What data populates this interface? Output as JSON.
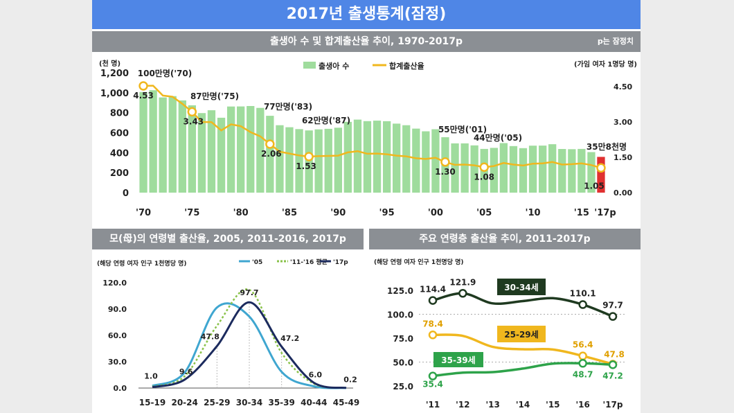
{
  "title": "2017년 출생통계(잠정)",
  "colors": {
    "bar": "#9fdc9d",
    "rate": "#f0b71e",
    "green_dark": "#1f3a20",
    "c05": "#3fa6d0",
    "c11_16": "#8ac24a",
    "c17": "#1c2b5e",
    "line_yellow": "#f0b71e",
    "line_green": "#2ea34a",
    "mark_red": "#e03030"
  },
  "top": {
    "subtitle": "출생아 수 및 합계출산율 추이, 1970-2017p",
    "note": "p는 잠정치",
    "unit_left": "(천 명)",
    "unit_right": "(가임 여자 1명당 명)",
    "legend_bar": "출생아 수",
    "legend_line": "합계출산율",
    "left_ticks": [
      "1,200",
      "1,000",
      "800",
      "600",
      "400",
      "200",
      "0"
    ],
    "right_ticks": [
      "4.50",
      "3.00",
      "1.50",
      "0.00"
    ],
    "x_labels": [
      "'70",
      "'75",
      "'80",
      "'85",
      "'90",
      "'95",
      "'00",
      "'05",
      "'10",
      "'15",
      "'17p"
    ],
    "callouts": [
      "100만명('70)",
      "87만명('75)",
      "77만명('83)",
      "62만명('87)",
      "55만명('01)",
      "44만명('05)",
      "35만8천명"
    ],
    "rate_labels": [
      "4.53",
      "3.43",
      "2.06",
      "1.53",
      "1.30",
      "1.08",
      "1.05"
    ]
  },
  "bl": {
    "subtitle": "모(母)의 연령별 출산율, 2005, 2011-2016, 2017p",
    "unit": "(해당 연령 여자 인구 1천명당 명)",
    "legend": [
      "'05",
      "'11-'16 평균",
      "'17p"
    ],
    "y_ticks": [
      "120.0",
      "90.0",
      "60.0",
      "30.0",
      "0.0"
    ],
    "x_labels": [
      "15-19",
      "20-24",
      "25-29",
      "30-34",
      "35-39",
      "40-44",
      "45-49"
    ],
    "point_labels": [
      "1.0",
      "9.6",
      "47.8",
      "97.7",
      "47.2",
      "6.0",
      "0.2"
    ]
  },
  "br": {
    "subtitle": "주요 연령층 출산율 추이, 2011-2017p",
    "unit": "(해당 연령 여자 인구 1천명당 명)",
    "y_ticks": [
      "125.0",
      "100.0",
      "75.0",
      "50.0",
      "25.0"
    ],
    "x_labels": [
      "'11",
      "'12",
      "'13",
      "'14",
      "'15",
      "'16",
      "'17p"
    ],
    "series_labels": [
      "30-34세",
      "25-29세",
      "35-39세"
    ],
    "value_labels": [
      "114.4",
      "121.9",
      "110.1",
      "97.7",
      "78.4",
      "56.4",
      "47.8",
      "35.4",
      "48.7",
      "47.2"
    ]
  },
  "chart_data": [
    {
      "type": "bar",
      "title": "출생아 수 및 합계출산율 추이, 1970-2017p",
      "ylabel": "(천 명)",
      "y2label": "(가임 여자 1명당 명)",
      "ylim": [
        0,
        1200
      ],
      "y2lim": [
        0,
        5.0
      ],
      "x": [
        1970,
        1971,
        1972,
        1973,
        1974,
        1975,
        1976,
        1977,
        1978,
        1979,
        1980,
        1981,
        1982,
        1983,
        1984,
        1985,
        1986,
        1987,
        1988,
        1989,
        1990,
        1991,
        1992,
        1993,
        1994,
        1995,
        1996,
        1997,
        1998,
        1999,
        2000,
        2001,
        2002,
        2003,
        2004,
        2005,
        2006,
        2007,
        2008,
        2009,
        2010,
        2011,
        2012,
        2013,
        2014,
        2015,
        2016,
        2017
      ],
      "series": [
        {
          "name": "출생아 수",
          "type": "bar",
          "values": [
            1007,
            1025,
            953,
            966,
            923,
            874,
            796,
            825,
            750,
            862,
            863,
            867,
            848,
            769,
            675,
            655,
            636,
            623,
            633,
            639,
            650,
            709,
            731,
            716,
            721,
            715,
            691,
            675,
            641,
            614,
            635,
            555,
            493,
            493,
            473,
            438,
            448,
            496,
            466,
            445,
            470,
            471,
            485,
            437,
            435,
            438,
            406,
            358
          ]
        },
        {
          "name": "합계출산율",
          "type": "line",
          "values": [
            4.53,
            4.54,
            4.12,
            4.07,
            3.77,
            3.43,
            3.0,
            2.99,
            2.64,
            2.9,
            2.82,
            2.57,
            2.39,
            2.06,
            1.74,
            1.66,
            1.58,
            1.53,
            1.55,
            1.56,
            1.57,
            1.71,
            1.76,
            1.65,
            1.66,
            1.63,
            1.57,
            1.54,
            1.46,
            1.43,
            1.48,
            1.3,
            1.18,
            1.19,
            1.16,
            1.08,
            1.13,
            1.26,
            1.19,
            1.15,
            1.23,
            1.24,
            1.3,
            1.19,
            1.21,
            1.24,
            1.17,
            1.05
          ]
        }
      ]
    },
    {
      "type": "line",
      "title": "모(母)의 연령별 출산율, 2005, 2011-2016, 2017p",
      "ylabel": "(해당 연령 여자 인구 1천명당 명)",
      "ylim": [
        0,
        120
      ],
      "categories": [
        "15-19",
        "20-24",
        "25-29",
        "30-34",
        "35-39",
        "40-44",
        "45-49"
      ],
      "series": [
        {
          "name": "'05",
          "values": [
            2.5,
            17.8,
            91.7,
            81.5,
            18.5,
            2.0,
            0.1
          ]
        },
        {
          "name": "'11-'16 평균",
          "values": [
            1.6,
            13.5,
            71.0,
            112.0,
            40.0,
            5.0,
            0.2
          ]
        },
        {
          "name": "'17p",
          "values": [
            1.0,
            9.6,
            47.8,
            97.7,
            47.2,
            6.0,
            0.2
          ]
        }
      ]
    },
    {
      "type": "line",
      "title": "주요 연령층 출산율 추이, 2011-2017p",
      "ylabel": "(해당 연령 여자 인구 1천명당 명)",
      "ylim": [
        25,
        130
      ],
      "categories": [
        "'11",
        "'12",
        "'13",
        "'14",
        "'15",
        "'16",
        "'17p"
      ],
      "series": [
        {
          "name": "30-34세",
          "values": [
            114.4,
            121.9,
            111.4,
            113.8,
            116.8,
            110.1,
            97.7
          ]
        },
        {
          "name": "25-29세",
          "values": [
            78.4,
            77.4,
            65.9,
            63.4,
            63.1,
            56.4,
            47.8
          ]
        },
        {
          "name": "35-39세",
          "values": [
            35.4,
            39.0,
            39.5,
            43.2,
            48.3,
            48.7,
            47.2
          ]
        }
      ]
    }
  ]
}
